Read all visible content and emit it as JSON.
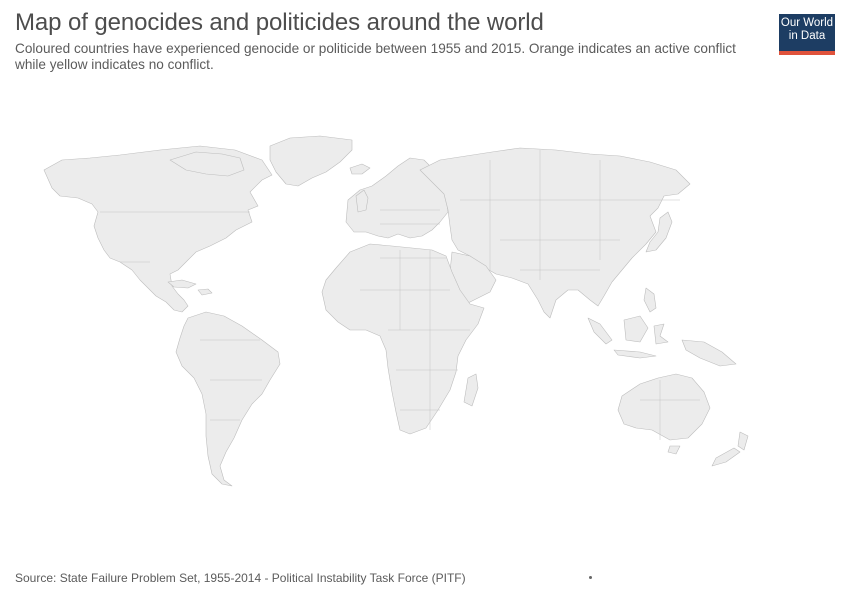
{
  "header": {
    "title": "Map of genocides and politicides around the world",
    "subtitle": "Coloured countries have experienced genocide or politicide between 1955 and 2015. Orange indicates an active conflict while yellow indicates no conflict."
  },
  "logo": {
    "line1": "Our World",
    "line2": "in Data",
    "background_color": "#1d3d63",
    "accent_color": "#e0533c"
  },
  "map": {
    "land_color": "#ececec",
    "border_color": "#bdbdbd",
    "active_conflict_color": "orange",
    "no_conflict_color": "yellow"
  },
  "footer": {
    "source": "Source: State Failure Problem Set, 1955-2014 - Political Instability Task Force (PITF)"
  }
}
